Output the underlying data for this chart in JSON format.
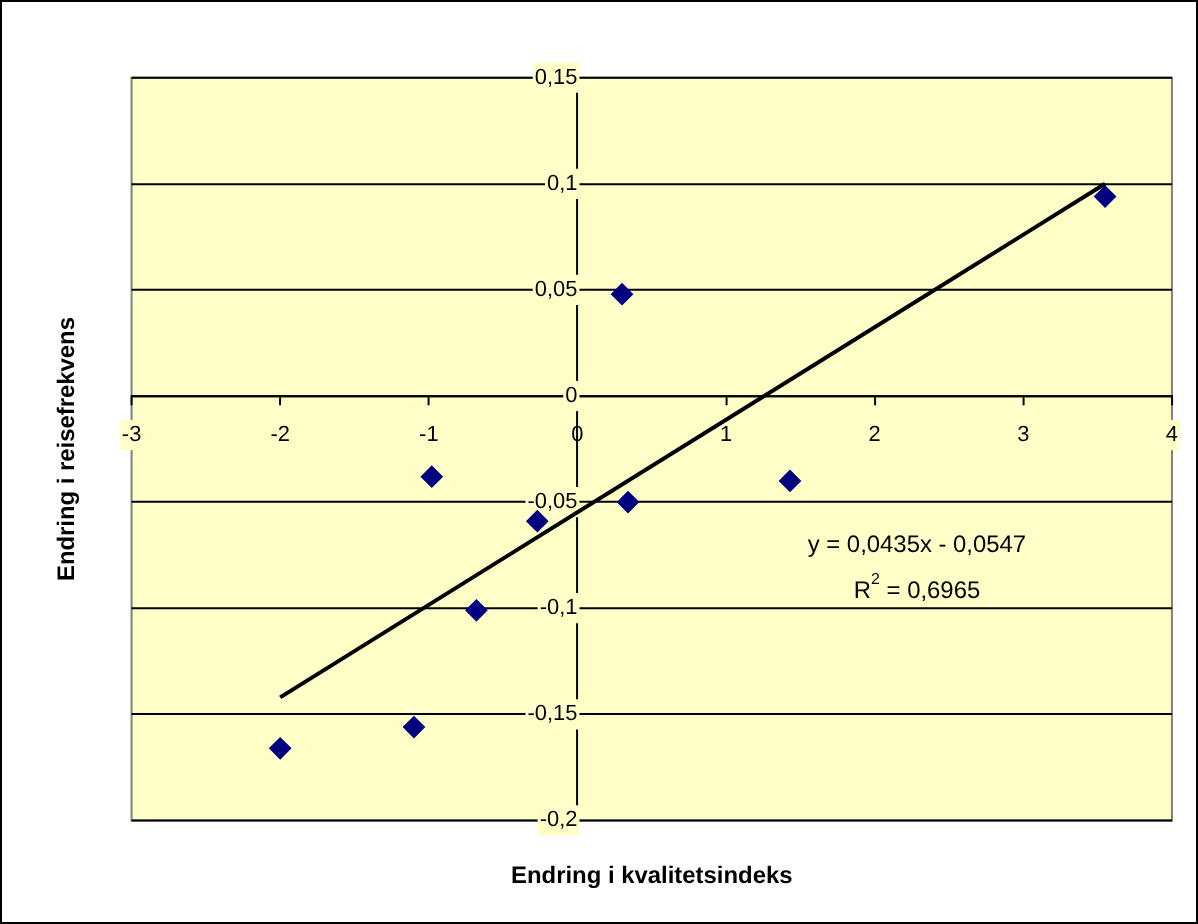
{
  "chart_data": {
    "type": "scatter",
    "xlabel": "Endring i kvalitetsindeks",
    "ylabel": "Endring i reisefrekvens",
    "xlim": [
      -3,
      4
    ],
    "xticks": [
      -3,
      -2,
      -1,
      0,
      1,
      2,
      3,
      4
    ],
    "ylim": [
      -0.2,
      0.15
    ],
    "yticks": [
      {
        "value": -0.2,
        "label": "-0,2"
      },
      {
        "value": -0.15,
        "label": "-0,15"
      },
      {
        "value": -0.1,
        "label": "-0,1"
      },
      {
        "value": -0.05,
        "label": "-0,05"
      },
      0,
      {
        "value": 0.05,
        "label": "0,05"
      },
      {
        "value": 0.1,
        "label": "0,1"
      },
      {
        "value": 0.15,
        "label": "0,15"
      }
    ],
    "grid": "y",
    "marker": "diamond",
    "series": [
      {
        "color": "#000080",
        "x": [
          -2.0,
          -1.1,
          -0.98,
          -0.68,
          -0.27,
          0.3,
          0.34,
          1.43,
          3.55
        ],
        "values": [
          -0.166,
          -0.156,
          -0.038,
          -0.101,
          -0.059,
          0.048,
          -0.05,
          -0.04,
          0.094
        ]
      },
      {
        "type": "line",
        "marker": "none",
        "color": "#000000",
        "x": [
          -2,
          3.55
        ],
        "values": [
          -0.142,
          0.1
        ]
      }
    ],
    "annotations": [
      "y = 0,0435x - 0,0547",
      "R$^{2}$ = 0,6965"
    ]
  }
}
